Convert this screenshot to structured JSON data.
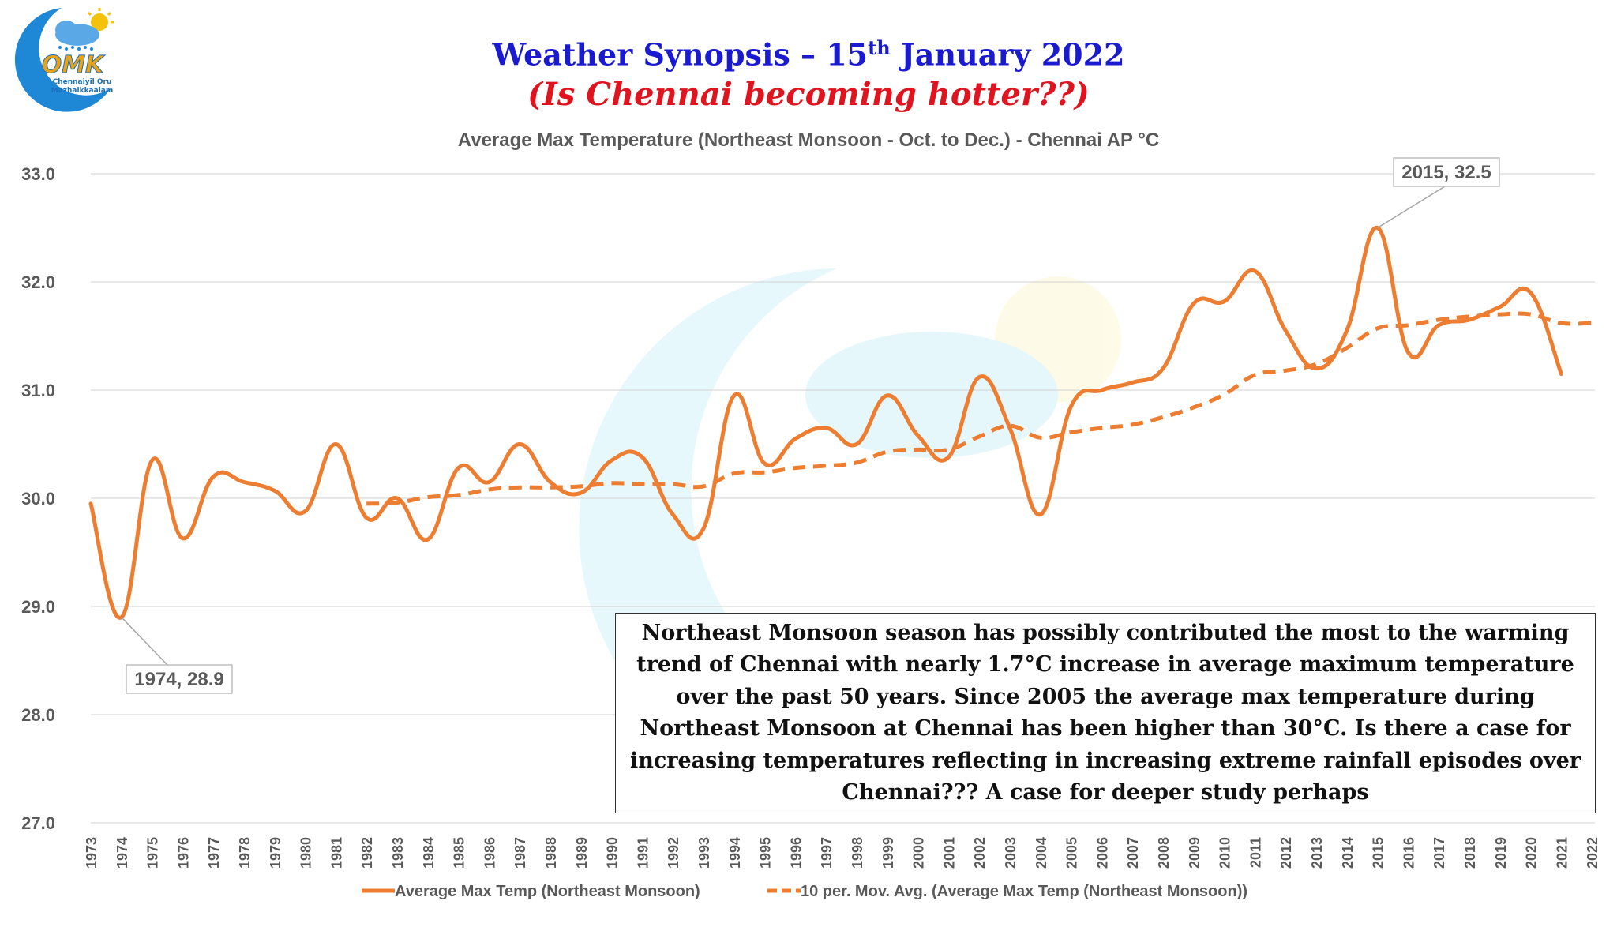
{
  "header": {
    "title_main": "Weather Synopsis – 15",
    "title_sup": "th",
    "title_rest": " January 2022",
    "subtitle": "(Is Chennai becoming hotter??)"
  },
  "logo": {
    "mark": "OMK",
    "line1": "Chennaiyil Oru",
    "line2": "Mazhaikkaalam"
  },
  "note": "Northeast Monsoon season has possibly contributed the most to the warming trend of Chennai with nearly 1.7°C increase in average maximum temperature over the past 50 years. Since 2005 the average max temperature during Northeast Monsoon at Chennai has been higher than 30°C. Is there a case for increasing temperatures reflecting in increasing extreme rainfall episodes over Chennai??? A case for deeper study perhaps",
  "colors": {
    "series": "#ed7d31",
    "grid": "#d9d9d9",
    "axis_text": "#595959",
    "title": "#1a1ad0",
    "subtitle": "#e0141e"
  },
  "chart_data": {
    "type": "line",
    "title": "Average Max Temperature (Northeast Monsoon - Oct. to Dec.)  - Chennai AP °C",
    "xlabel": "",
    "ylabel": "",
    "ylim": [
      27.0,
      33.0
    ],
    "yticks": [
      "27.0",
      "28.0",
      "29.0",
      "30.0",
      "31.0",
      "32.0",
      "33.0"
    ],
    "grid": true,
    "legend_position": "bottom",
    "categories": [
      "1973",
      "1974",
      "1975",
      "1976",
      "1977",
      "1978",
      "1979",
      "1980",
      "1981",
      "1982",
      "1983",
      "1984",
      "1985",
      "1986",
      "1987",
      "1988",
      "1989",
      "1990",
      "1991",
      "1992",
      "1993",
      "1994",
      "1995",
      "1996",
      "1997",
      "1998",
      "1999",
      "2000",
      "2001",
      "2002",
      "2003",
      "2004",
      "2005",
      "2006",
      "2007",
      "2008",
      "2009",
      "2010",
      "2011",
      "2012",
      "2013",
      "2014",
      "2015",
      "2016",
      "2017",
      "2018",
      "2019",
      "2020",
      "2021",
      "2022"
    ],
    "series": [
      {
        "name": "Average Max Temp (Northeast Monsoon)",
        "style": "solid",
        "values": [
          29.95,
          28.9,
          30.35,
          29.63,
          30.2,
          30.15,
          30.07,
          29.88,
          30.5,
          29.82,
          30.0,
          29.62,
          30.28,
          30.15,
          30.5,
          30.15,
          30.05,
          30.35,
          30.38,
          29.85,
          29.72,
          30.95,
          30.32,
          30.55,
          30.65,
          30.5,
          30.95,
          30.58,
          30.38,
          31.12,
          30.65,
          29.85,
          30.85,
          31.0,
          31.07,
          31.2,
          31.8,
          31.82,
          32.1,
          31.55,
          31.2,
          31.55,
          32.5,
          31.35,
          31.6,
          31.65,
          31.77,
          31.9,
          31.15,
          null
        ]
      },
      {
        "name": "10 per. Mov. Avg. (Average Max Temp (Northeast Monsoon))",
        "style": "dashed",
        "values": [
          null,
          null,
          null,
          null,
          null,
          null,
          null,
          null,
          null,
          29.95,
          29.96,
          30.01,
          30.03,
          30.08,
          30.1,
          30.1,
          30.11,
          30.14,
          30.13,
          30.13,
          30.11,
          30.23,
          30.24,
          30.28,
          30.3,
          30.33,
          30.43,
          30.45,
          30.45,
          30.57,
          30.67,
          30.56,
          30.61,
          30.65,
          30.68,
          30.75,
          30.84,
          30.96,
          31.14,
          31.18,
          31.24,
          31.39,
          31.57,
          31.6,
          31.65,
          31.68,
          31.7,
          31.7,
          31.62,
          31.62
        ]
      }
    ],
    "annotations": [
      {
        "label": "1974, 28.9",
        "year": "1974",
        "value": 28.9
      },
      {
        "label": "2015, 32.5",
        "year": "2015",
        "value": 32.5
      }
    ]
  }
}
